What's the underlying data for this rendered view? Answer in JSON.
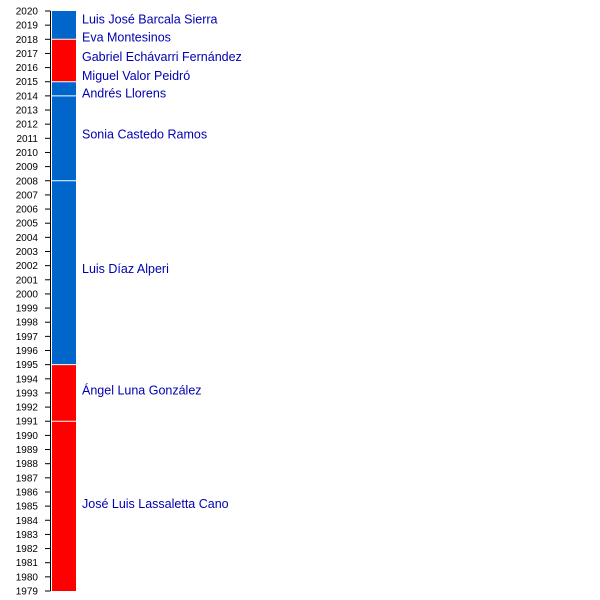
{
  "chart_data": {
    "type": "bar",
    "orientation": "vertical-timeline",
    "ylim": [
      1979,
      2020
    ],
    "tick_step": 1,
    "colors": {
      "red": "#ff0000",
      "blue": "#0066cc",
      "label": "#0000b0"
    },
    "segments": [
      {
        "start": 1979,
        "end": 1991,
        "color": "#ff0000"
      },
      {
        "start": 1991,
        "end": 1995,
        "color": "#ff0000"
      },
      {
        "start": 1995,
        "end": 2008,
        "color": "#0066cc"
      },
      {
        "start": 2008,
        "end": 2014,
        "color": "#0066cc"
      },
      {
        "start": 2014,
        "end": 2015,
        "color": "#0066cc"
      },
      {
        "start": 2015,
        "end": 2018,
        "color": "#ff0000"
      },
      {
        "start": 2018,
        "end": 2020,
        "color": "#0066cc"
      }
    ],
    "labels": [
      "José Luis Lassaletta Cano",
      "Ángel Luna González",
      "Luis Díaz Alperi",
      "Sonia Castedo Ramos",
      "Andrés Llorens",
      "Miguel Valor Peidró",
      "Gabriel Echávarri Fernández",
      "Eva Montesinos",
      "Luis José Barcala Sierra"
    ]
  }
}
